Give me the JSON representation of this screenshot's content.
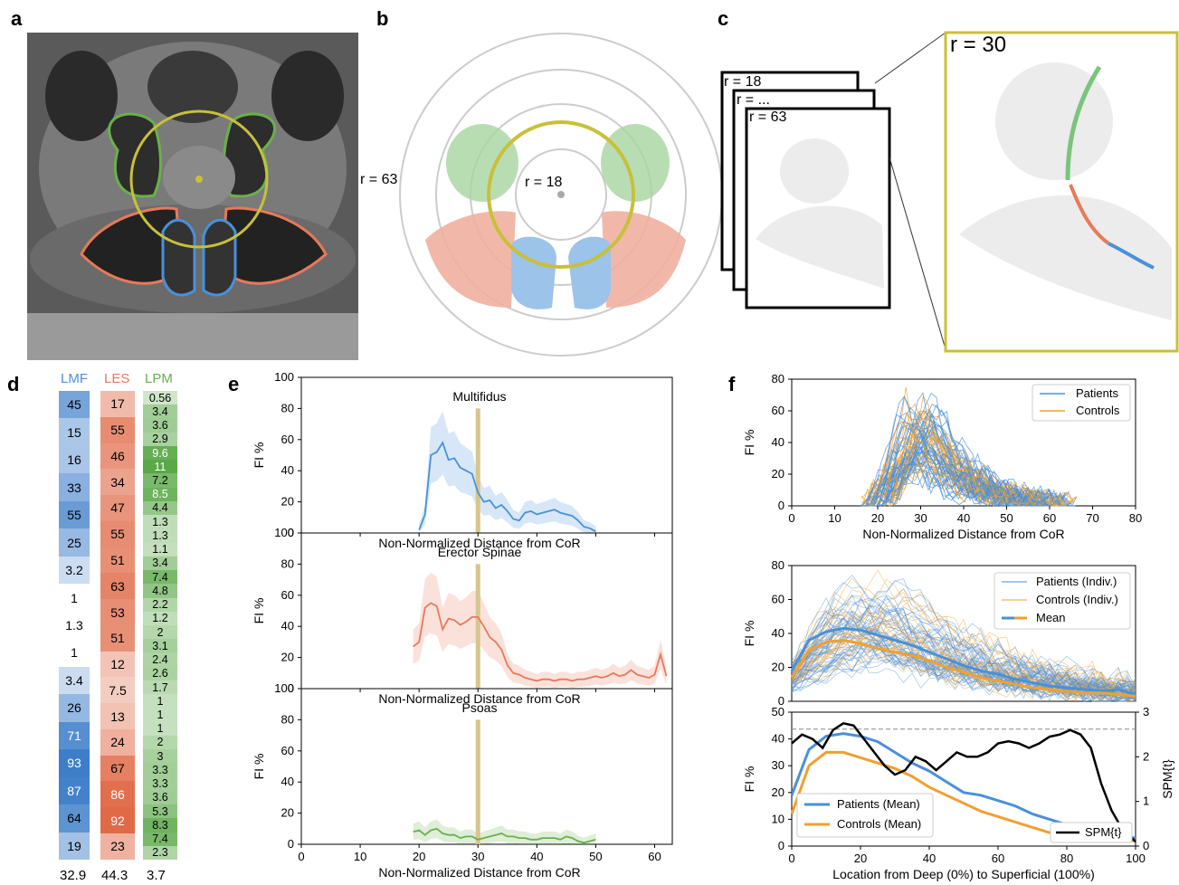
{
  "panels": {
    "a": "a",
    "b": "b",
    "c": "c",
    "d": "d",
    "e": "e",
    "f": "f"
  },
  "colors": {
    "multifidus": "#4a90d9",
    "erector": "#e8795a",
    "psoas": "#6ab04c",
    "ring": "#c8c03a",
    "patients": "#4a90d9",
    "controls": "#f0a030",
    "spm": "#000000"
  },
  "panel_b": {
    "r63": "r = 63",
    "r18": "r = 18"
  },
  "panel_c": {
    "frame1": "r = 18",
    "frame2": "r = ...",
    "frame3": "r = 63",
    "zoom": "r = 30"
  },
  "panel_d": {
    "headers": [
      "LMF",
      "LES",
      "LPM"
    ],
    "LMF": [
      "45",
      "15",
      "16",
      "33",
      "55",
      "25",
      "3.2",
      "1",
      "1.3",
      "1",
      "3.4",
      "26",
      "71",
      "93",
      "87",
      "64",
      "19"
    ],
    "LES": [
      "17",
      "55",
      "46",
      "34",
      "47",
      "55",
      "51",
      "63",
      "53",
      "51",
      "12",
      "7.5",
      "13",
      "24",
      "67",
      "86",
      "92",
      "23"
    ],
    "LPM": [
      "0.56",
      "3.4",
      "3.6",
      "2.9",
      "9.6",
      "11",
      "7.2",
      "8.5",
      "4.4",
      "1.3",
      "1.3",
      "1.1",
      "3.4",
      "7.4",
      "4.8",
      "2.2",
      "1.2",
      "2",
      "3.1",
      "2.4",
      "2.6",
      "1.7",
      "1",
      "1",
      "1",
      "2",
      "3",
      "3.3",
      "3.3",
      "3.6",
      "5.3",
      "8.3",
      "7.4",
      "2.3"
    ],
    "footer": [
      "32.9",
      "44.3",
      "3.7"
    ]
  },
  "chart_data": [
    {
      "type": "line",
      "title": "Multifidus",
      "xlabel": "Non-Normalized Distance from CoR",
      "ylabel": "FI %",
      "xlim": [
        0,
        63
      ],
      "ylim": [
        0,
        100
      ],
      "marker_x": 30,
      "x": [
        20,
        21,
        22,
        23,
        24,
        25,
        26,
        27,
        28,
        29,
        30,
        31,
        32,
        33,
        34,
        35,
        36,
        37,
        38,
        39,
        40,
        41,
        42,
        43,
        44,
        45,
        46,
        47,
        48,
        49,
        50
      ],
      "y": [
        2,
        12,
        50,
        52,
        58,
        47,
        48,
        42,
        40,
        38,
        26,
        20,
        21,
        16,
        18,
        14,
        9,
        8,
        13,
        14,
        12,
        13,
        14,
        15,
        13,
        12,
        11,
        8,
        4,
        3,
        1
      ]
    },
    {
      "type": "line",
      "title": "Erector Spinae",
      "xlabel": "Non-Normalized Distance from CoR",
      "ylabel": "FI %",
      "xlim": [
        0,
        63
      ],
      "ylim": [
        0,
        100
      ],
      "marker_x": 30,
      "x": [
        19,
        20,
        21,
        22,
        23,
        24,
        25,
        26,
        27,
        28,
        29,
        30,
        31,
        32,
        33,
        34,
        35,
        36,
        37,
        38,
        39,
        40,
        41,
        42,
        43,
        44,
        45,
        46,
        47,
        48,
        49,
        50,
        51,
        52,
        53,
        54,
        55,
        56,
        57,
        58,
        59,
        60,
        61,
        62
      ],
      "y": [
        27,
        30,
        52,
        55,
        53,
        38,
        45,
        44,
        41,
        43,
        46,
        46,
        40,
        33,
        30,
        25,
        15,
        10,
        9,
        7,
        6,
        5,
        6,
        6,
        5,
        6,
        6,
        5,
        6,
        6,
        7,
        8,
        7,
        8,
        10,
        8,
        9,
        12,
        9,
        8,
        7,
        9,
        22,
        8
      ]
    },
    {
      "type": "line",
      "title": "Psoas",
      "xlabel": "Non-Normalized Distance from CoR",
      "ylabel": "FI %",
      "xlim": [
        0,
        63
      ],
      "ylim": [
        0,
        100
      ],
      "marker_x": 30,
      "x": [
        19,
        20,
        21,
        22,
        23,
        24,
        25,
        26,
        27,
        28,
        29,
        30,
        31,
        32,
        33,
        34,
        35,
        36,
        37,
        38,
        39,
        40,
        41,
        42,
        43,
        44,
        45,
        46,
        47,
        48,
        49,
        50
      ],
      "y": [
        8,
        9,
        6,
        9,
        10,
        7,
        6,
        6,
        4,
        5,
        5,
        3,
        4,
        5,
        6,
        7,
        5,
        5,
        4,
        4,
        3,
        3,
        4,
        4,
        4,
        3,
        5,
        4,
        2,
        1,
        2,
        3
      ]
    },
    {
      "type": "line",
      "xlabel": "Non-Normalized Distance from CoR",
      "ylabel": "FI %",
      "xlim": [
        0,
        80
      ],
      "ylim": [
        0,
        80
      ],
      "legend": "top-right",
      "series": [
        {
          "name": "Patients"
        },
        {
          "name": "Controls"
        }
      ]
    },
    {
      "type": "line",
      "ylabel": "FI %",
      "xlim": [
        0,
        100
      ],
      "ylim": [
        0,
        80
      ],
      "legend": "top-right",
      "series": [
        {
          "name": "Patients (Indiv.)"
        },
        {
          "name": "Controls (Indiv.)"
        },
        {
          "name": "Mean",
          "x": [
            0,
            5,
            10,
            15,
            20,
            25,
            30,
            35,
            40,
            45,
            50,
            55,
            60,
            65,
            70,
            75,
            80,
            85,
            90,
            95,
            100
          ],
          "patients": [
            18,
            36,
            41,
            43,
            42,
            39,
            36,
            33,
            29,
            25,
            21,
            18,
            16,
            13,
            11,
            9,
            8,
            7,
            6,
            7,
            4
          ],
          "controls": [
            14,
            30,
            35,
            36,
            34,
            31,
            29,
            27,
            24,
            20,
            17,
            14,
            12,
            10,
            8,
            7,
            6,
            5,
            5,
            4,
            3
          ]
        }
      ]
    },
    {
      "type": "line",
      "xlabel": "Location from Deep (0%) to Superficial (100%)",
      "ylabel": "FI %",
      "y2label": "SPM{t}",
      "xlim": [
        0,
        100
      ],
      "ylim": [
        0,
        50
      ],
      "y2lim": [
        0,
        3
      ],
      "threshold": 2.62,
      "legend": "bottom",
      "series": [
        {
          "name": "Patients (Mean)",
          "x": [
            0,
            5,
            10,
            15,
            20,
            25,
            30,
            35,
            40,
            45,
            50,
            55,
            60,
            65,
            70,
            75,
            80,
            85,
            90,
            95,
            100
          ],
          "y": [
            19,
            36,
            41,
            42,
            41,
            39,
            35,
            31,
            28,
            24,
            20,
            19,
            17,
            15,
            12,
            10,
            8,
            6,
            5,
            4,
            3
          ]
        },
        {
          "name": "Controls (Mean)",
          "x": [
            0,
            5,
            10,
            15,
            20,
            25,
            30,
            35,
            40,
            45,
            50,
            55,
            60,
            65,
            70,
            75,
            80,
            85,
            90,
            95,
            100
          ],
          "y": [
            12,
            30,
            35,
            35,
            33,
            31,
            29,
            26,
            22,
            19,
            16,
            13,
            11,
            9,
            7,
            5,
            4,
            3,
            2,
            2,
            2
          ]
        },
        {
          "name": "SPM{t}",
          "x": [
            0,
            3,
            6,
            9,
            12,
            15,
            18,
            21,
            24,
            27,
            30,
            33,
            36,
            39,
            42,
            45,
            48,
            51,
            54,
            57,
            60,
            63,
            66,
            69,
            72,
            75,
            78,
            81,
            84,
            87,
            90,
            93,
            96,
            100
          ],
          "y": [
            2.3,
            2.5,
            2.4,
            2.2,
            2.6,
            2.75,
            2.7,
            2.4,
            2.1,
            1.8,
            1.6,
            1.7,
            2.0,
            1.9,
            1.7,
            1.9,
            2.1,
            2.0,
            2.0,
            2.1,
            2.3,
            2.35,
            2.3,
            2.2,
            2.3,
            2.45,
            2.5,
            2.6,
            2.5,
            2.2,
            1.4,
            0.8,
            0.4,
            0.1
          ]
        }
      ]
    }
  ],
  "axes_text": {
    "e_ticks_y": [
      "0",
      "20",
      "40",
      "60",
      "80",
      "100"
    ],
    "e_ticks_x": [
      "0",
      "10",
      "20",
      "30",
      "40",
      "50",
      "60"
    ],
    "f1_ticks_y": [
      "0",
      "20",
      "40",
      "60",
      "80"
    ],
    "f1_ticks_x": [
      "0",
      "10",
      "20",
      "30",
      "40",
      "50",
      "60",
      "70",
      "80"
    ],
    "f3_ticks_y": [
      "0",
      "10",
      "20",
      "30",
      "40",
      "50"
    ],
    "f3_ticks_y2": [
      "0",
      "1",
      "2",
      "3"
    ],
    "f3_ticks_x": [
      "0",
      "20",
      "40",
      "60",
      "80",
      "100"
    ]
  }
}
